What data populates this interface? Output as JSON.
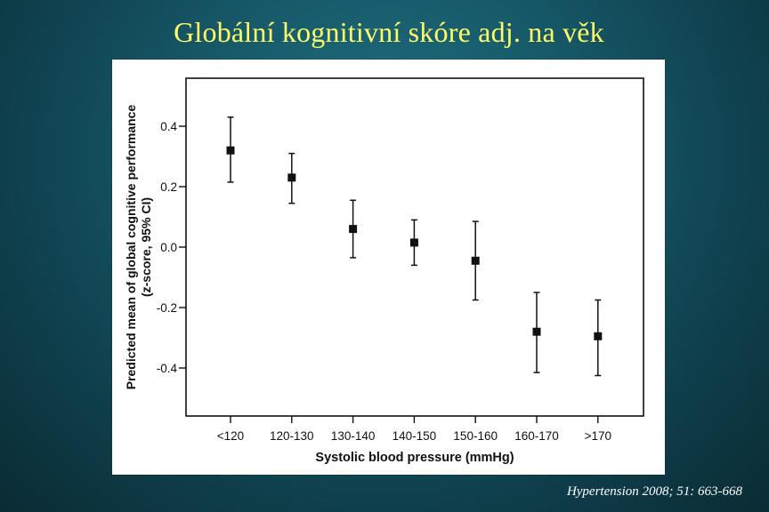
{
  "slide": {
    "title": "Globální kognitivní skóre adj. na věk",
    "citation": "Hypertension 2008; 51: 663-668"
  },
  "chart_data": {
    "type": "scatter",
    "subtype": "point-with-error-bars",
    "title": "",
    "xlabel": "Systolic blood pressure (mmHg)",
    "ylabel": [
      "Predicted mean of global cognitive performance",
      "(z-score, 95% CI)"
    ],
    "categories": [
      "<120",
      "120-130",
      "130-140",
      "140-150",
      "150-160",
      "160-170",
      ">170"
    ],
    "series": [
      {
        "values": [
          0.32,
          0.23,
          0.06,
          0.015,
          -0.045,
          -0.28,
          -0.295
        ],
        "ci_low": [
          0.215,
          0.145,
          -0.035,
          -0.06,
          -0.175,
          -0.415,
          -0.425
        ],
        "ci_high": [
          0.43,
          0.31,
          0.155,
          0.09,
          0.085,
          -0.15,
          -0.175
        ],
        "marker": "square",
        "color": "#111111"
      }
    ],
    "yticks": [
      0.4,
      0.2,
      0.0,
      -0.2,
      -0.4
    ],
    "ytick_labels": [
      "0.4",
      "0.2",
      "0.0",
      "-0.2",
      "-0.4"
    ],
    "ylim": [
      -0.56,
      0.56
    ],
    "grid": false,
    "legend": "none"
  },
  "colors": {
    "title": "#ffff66",
    "citation": "#ffffff",
    "panel_background": "#ffffff",
    "ink": "#111111"
  }
}
